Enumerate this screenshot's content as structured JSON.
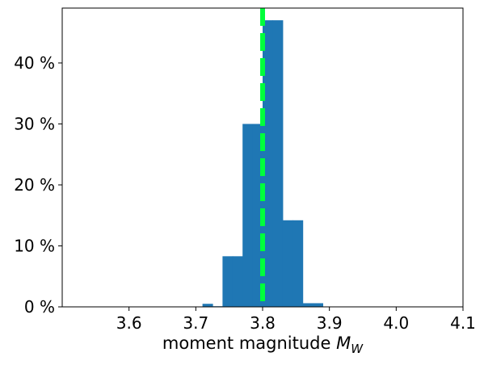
{
  "chart_data": {
    "type": "bar",
    "title": "",
    "xlabel_prefix": "moment magnitude ",
    "xlabel_symbol": "M",
    "xlabel_subscript": "W",
    "ylabel": "",
    "xlim": [
      3.5,
      4.1
    ],
    "ylim": [
      0,
      49
    ],
    "x_ticks": [
      {
        "value": 3.6,
        "label": "3.6"
      },
      {
        "value": 3.7,
        "label": "3.7"
      },
      {
        "value": 3.8,
        "label": "3.8"
      },
      {
        "value": 3.9,
        "label": "3.9"
      },
      {
        "value": 4.0,
        "label": "4.0"
      },
      {
        "value": 4.1,
        "label": "4.1"
      }
    ],
    "y_ticks": [
      {
        "value": 0,
        "label": "0 %"
      },
      {
        "value": 10,
        "label": "10 %"
      },
      {
        "value": 20,
        "label": "20 %"
      },
      {
        "value": 30,
        "label": "30 %"
      },
      {
        "value": 40,
        "label": "40 %"
      }
    ],
    "bins": [
      {
        "x0": 3.71,
        "x1": 3.725,
        "value": 0.5
      },
      {
        "x0": 3.725,
        "x1": 3.74,
        "value": 0.1
      },
      {
        "x0": 3.74,
        "x1": 3.755,
        "value": 8.3
      },
      {
        "x0": 3.755,
        "x1": 3.77,
        "value": 8.3
      },
      {
        "x0": 3.77,
        "x1": 3.785,
        "value": 30
      },
      {
        "x0": 3.785,
        "x1": 3.8,
        "value": 30
      },
      {
        "x0": 3.8,
        "x1": 3.815,
        "value": 47
      },
      {
        "x0": 3.815,
        "x1": 3.83,
        "value": 47
      },
      {
        "x0": 3.83,
        "x1": 3.845,
        "value": 14.2
      },
      {
        "x0": 3.845,
        "x1": 3.86,
        "value": 14.2
      },
      {
        "x0": 3.86,
        "x1": 3.875,
        "value": 0.6
      },
      {
        "x0": 3.875,
        "x1": 3.89,
        "value": 0.6
      }
    ],
    "reference_line": {
      "x": 3.8,
      "style": "dashed"
    },
    "bar_color": "#1f77b4",
    "reference_line_color": "#00ff3c",
    "grid": false,
    "legend": "none"
  }
}
